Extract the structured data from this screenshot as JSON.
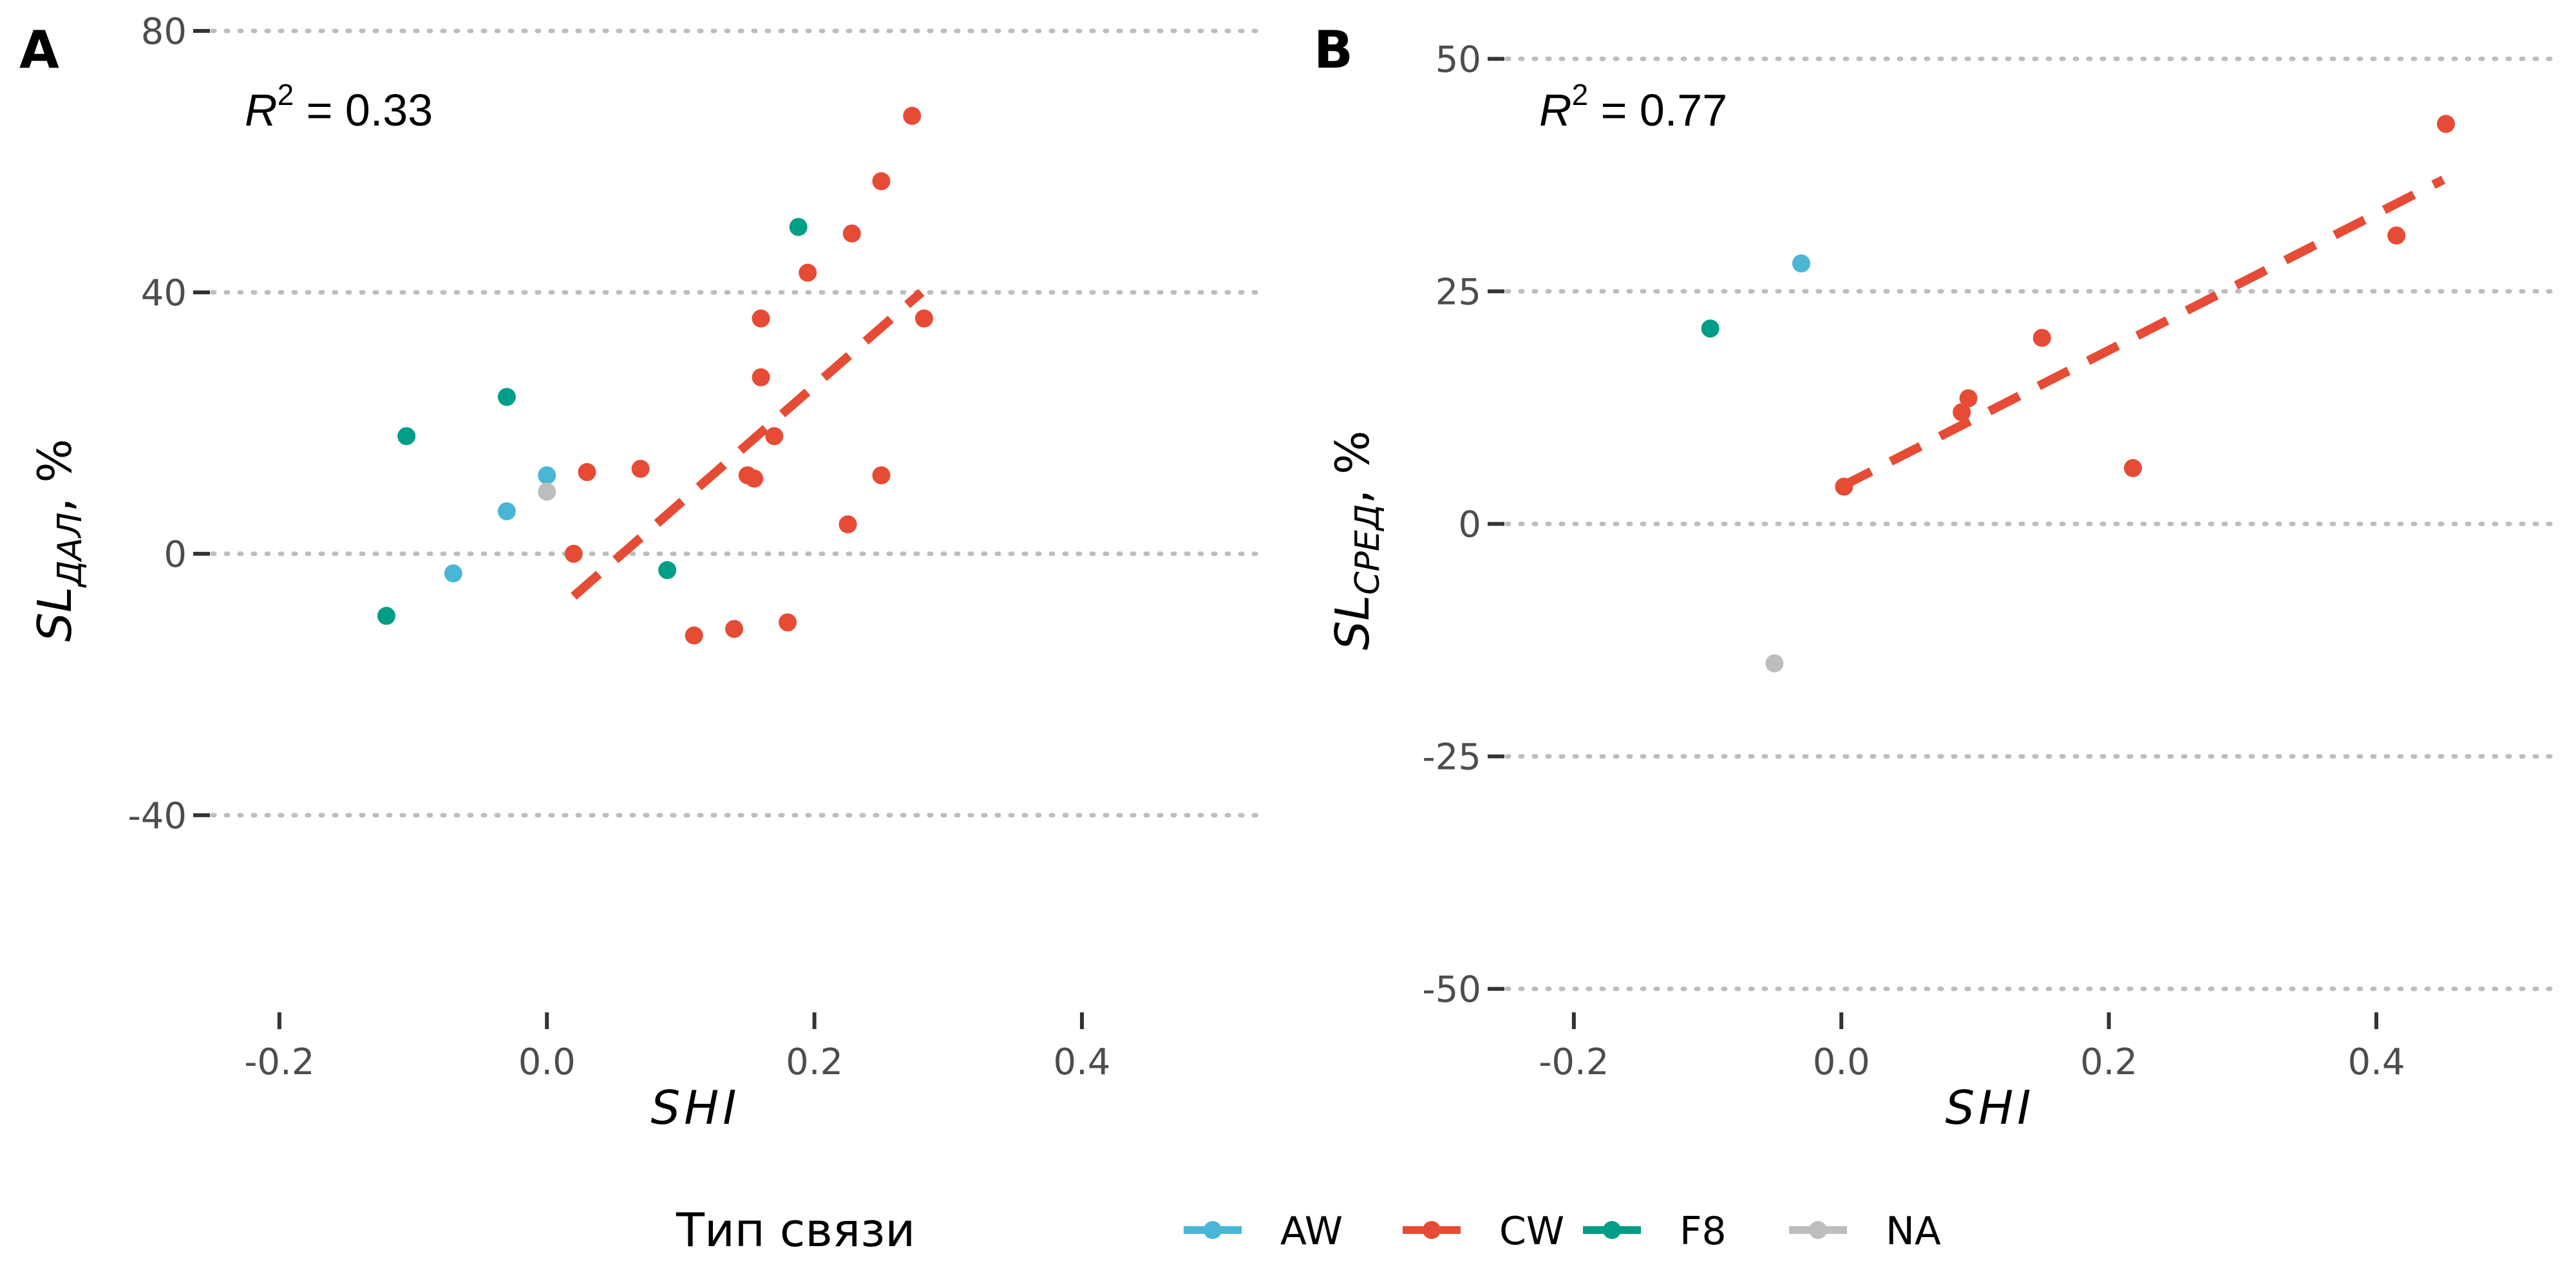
{
  "chart_data": [
    {
      "type": "scatter",
      "panel_label": "A",
      "xlabel": "SHI",
      "ylabel": {
        "main": "SL",
        "sub": "ДАЛ",
        "suffix": ", %"
      },
      "xlim": [
        -0.25,
        0.53
      ],
      "ylim": [
        -68,
        80
      ],
      "x_ticks": [
        -0.2,
        0.0,
        0.2,
        0.4
      ],
      "x_tick_labels": [
        "-0.2",
        "0.0",
        "0.2",
        "0.4"
      ],
      "y_ticks": [
        -40,
        0,
        40,
        80
      ],
      "y_tick_labels": [
        "-40",
        "0",
        "40",
        "80"
      ],
      "grid": "horizontal-dotted",
      "annotation": {
        "main": "R",
        "sup": "2",
        "rest": " = 0.33"
      },
      "trend_line": {
        "series": "CW",
        "x": [
          0.02,
          0.28
        ],
        "y": [
          -6.5,
          40
        ],
        "style": "dashed"
      },
      "series": [
        {
          "name": "AW",
          "x": [
            -0.07,
            -0.03,
            0.0
          ],
          "y": [
            -3,
            6.5,
            12
          ]
        },
        {
          "name": "CW",
          "x": [
            0.02,
            0.03,
            0.07,
            0.11,
            0.14,
            0.15,
            0.155,
            0.16,
            0.16,
            0.17,
            0.18,
            0.195,
            0.225,
            0.228,
            0.25,
            0.25,
            0.273,
            0.282
          ],
          "y": [
            0,
            12.5,
            13,
            -12.5,
            -11.5,
            12,
            11.5,
            27,
            36,
            18,
            -10.5,
            43,
            4.5,
            49,
            57,
            12,
            67,
            36
          ]
        },
        {
          "name": "F8",
          "x": [
            -0.12,
            -0.105,
            -0.03,
            0.09,
            0.188
          ],
          "y": [
            -9.5,
            18,
            24,
            -2.5,
            50
          ]
        },
        {
          "name": "NA",
          "x": [
            0.0
          ],
          "y": [
            9.5
          ]
        }
      ]
    },
    {
      "type": "scatter",
      "panel_label": "B",
      "xlabel": "SHI",
      "ylabel": {
        "main": "SL",
        "sub": "СРЕД",
        "suffix": ", %"
      },
      "xlim": [
        -0.25,
        0.53
      ],
      "ylim": [
        -51,
        53
      ],
      "x_ticks": [
        -0.2,
        0.0,
        0.2,
        0.4
      ],
      "x_tick_labels": [
        "-0.2",
        "0.0",
        "0.2",
        "0.4"
      ],
      "y_ticks": [
        -50,
        -25,
        0,
        25,
        50
      ],
      "y_tick_labels": [
        "-50",
        "-25",
        "0",
        "25",
        "50"
      ],
      "grid": "horizontal-dotted",
      "annotation": {
        "main": "R",
        "sup": "2",
        "rest": " = 0.77"
      },
      "trend_line": {
        "series": "CW",
        "x": [
          0.0,
          0.45
        ],
        "y": [
          4,
          37
        ],
        "style": "dashed"
      },
      "series": [
        {
          "name": "AW",
          "x": [
            -0.03
          ],
          "y": [
            28
          ]
        },
        {
          "name": "CW",
          "x": [
            0.002,
            0.09,
            0.095,
            0.15,
            0.218,
            0.415,
            0.452
          ],
          "y": [
            4,
            12,
            13.5,
            20,
            6,
            31,
            43
          ]
        },
        {
          "name": "F8",
          "x": [
            -0.098
          ],
          "y": [
            21
          ]
        },
        {
          "name": "NA",
          "x": [
            -0.05
          ],
          "y": [
            -15
          ]
        }
      ]
    }
  ],
  "legend": {
    "title": "Тип связи",
    "placement": "bottom",
    "items": [
      {
        "name": "AW",
        "label": "AW",
        "color": "#4AB6D6"
      },
      {
        "name": "CW",
        "label": "CW",
        "color": "#E64B35"
      },
      {
        "name": "F8",
        "label": "F8",
        "color": "#009E87"
      },
      {
        "name": "NA",
        "label": "NA",
        "color": "#BDBDBD"
      }
    ]
  }
}
